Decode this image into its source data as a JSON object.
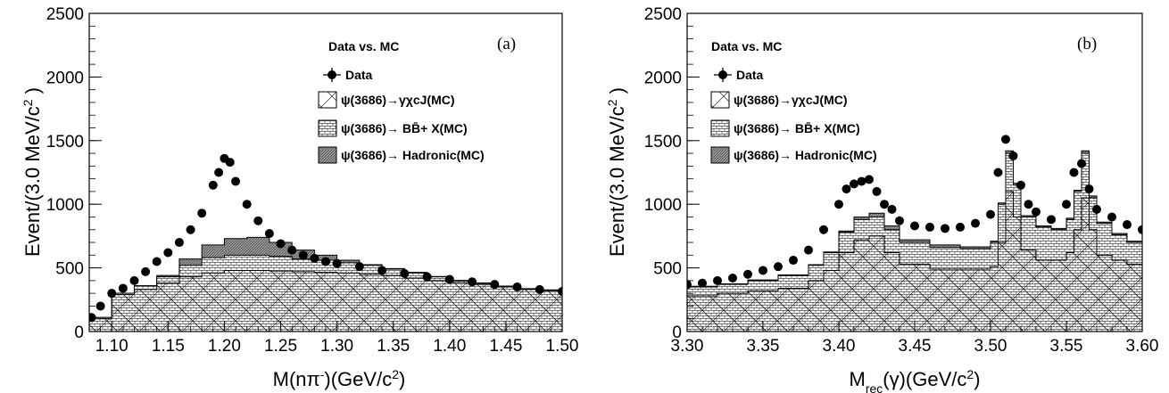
{
  "chart_data": [
    {
      "type": "histogram",
      "panel_label": "(a)",
      "xlabel": "M(nπ⁻)(GeV/c²)",
      "ylabel": "Event/(3.0 MeV/c²)",
      "xlim": [
        1.08,
        1.5
      ],
      "ylim": [
        0,
        2500
      ],
      "xticks": [
        "1.10",
        "1.15",
        "1.20",
        "1.25",
        "1.30",
        "1.35",
        "1.40",
        "1.45",
        "1.50"
      ],
      "yticks": [
        "0",
        "500",
        "1000",
        "1500",
        "2000",
        "2500"
      ],
      "legend": {
        "title": "Data vs. MC",
        "data": "Data",
        "chicj": "ψ(3686)→γχcJ(MC)",
        "bbbar": "ψ(3686)→ BB̄+ X(MC)",
        "hadronic": "ψ(3686)→ Hadronic(MC)"
      },
      "data_points": {
        "x": [
          1.082,
          1.09,
          1.1,
          1.11,
          1.12,
          1.13,
          1.14,
          1.15,
          1.16,
          1.17,
          1.18,
          1.19,
          1.195,
          1.2,
          1.205,
          1.21,
          1.22,
          1.23,
          1.24,
          1.25,
          1.26,
          1.27,
          1.28,
          1.29,
          1.3,
          1.32,
          1.34,
          1.36,
          1.38,
          1.4,
          1.42,
          1.44,
          1.46,
          1.48,
          1.5
        ],
        "y": [
          110,
          200,
          300,
          340,
          400,
          470,
          550,
          620,
          700,
          800,
          930,
          1150,
          1250,
          1360,
          1330,
          1180,
          1000,
          870,
          770,
          690,
          640,
          600,
          575,
          550,
          535,
          510,
          480,
          455,
          430,
          410,
          390,
          370,
          350,
          330,
          315
        ]
      },
      "mc_stack": {
        "x": [
          1.08,
          1.1,
          1.12,
          1.14,
          1.16,
          1.18,
          1.2,
          1.22,
          1.24,
          1.26,
          1.28,
          1.3,
          1.32,
          1.34,
          1.36,
          1.38,
          1.4,
          1.42,
          1.44,
          1.46,
          1.48,
          1.5
        ],
        "chicj": [
          100,
          290,
          330,
          380,
          430,
          460,
          480,
          480,
          475,
          470,
          465,
          460,
          450,
          440,
          420,
          400,
          385,
          370,
          350,
          330,
          320,
          310
        ],
        "bbbar_top": [
          110,
          300,
          360,
          430,
          520,
          580,
          600,
          600,
          590,
          570,
          560,
          540,
          520,
          490,
          460,
          430,
          400,
          380,
          355,
          335,
          325,
          315
        ],
        "hadronic_top": [
          110,
          300,
          360,
          440,
          570,
          680,
          730,
          740,
          700,
          640,
          600,
          560,
          525,
          495,
          465,
          432,
          402,
          382,
          357,
          337,
          327,
          317
        ]
      }
    },
    {
      "type": "histogram",
      "panel_label": "(b)",
      "xlabel": "Mrec(γ)(GeV/c²)",
      "ylabel": "Event/(3.0 MeV/c²)",
      "xlim": [
        3.3,
        3.6
      ],
      "ylim": [
        0,
        2500
      ],
      "xticks": [
        "3.30",
        "3.35",
        "3.40",
        "3.45",
        "3.50",
        "3.55",
        "3.60"
      ],
      "yticks": [
        "0",
        "500",
        "1000",
        "1500",
        "2000",
        "2500"
      ],
      "legend": {
        "title": "Data vs. MC",
        "data": "Data",
        "chicj": "ψ(3686)→γχcJ(MC)",
        "bbbar": "ψ(3686)→ BB̄+ X(MC)",
        "hadronic": "ψ(3686)→ Hadronic(MC)"
      },
      "data_points": {
        "x": [
          3.3,
          3.31,
          3.32,
          3.33,
          3.34,
          3.35,
          3.36,
          3.37,
          3.38,
          3.39,
          3.4,
          3.405,
          3.41,
          3.415,
          3.42,
          3.425,
          3.43,
          3.435,
          3.44,
          3.45,
          3.46,
          3.47,
          3.48,
          3.49,
          3.5,
          3.505,
          3.51,
          3.515,
          3.52,
          3.525,
          3.53,
          3.54,
          3.55,
          3.555,
          3.56,
          3.565,
          3.57,
          3.58,
          3.59,
          3.6
        ],
        "y": [
          370,
          380,
          400,
          420,
          450,
          480,
          510,
          560,
          640,
          800,
          1000,
          1120,
          1160,
          1180,
          1195,
          1100,
          1000,
          960,
          870,
          830,
          820,
          810,
          820,
          850,
          920,
          1250,
          1510,
          1380,
          1150,
          1000,
          940,
          880,
          1000,
          1250,
          1320,
          1120,
          960,
          900,
          840,
          800
        ]
      },
      "mc_stack": {
        "x": [
          3.3,
          3.32,
          3.34,
          3.36,
          3.38,
          3.39,
          3.4,
          3.41,
          3.42,
          3.43,
          3.44,
          3.46,
          3.48,
          3.5,
          3.505,
          3.51,
          3.515,
          3.52,
          3.53,
          3.54,
          3.55,
          3.555,
          3.56,
          3.565,
          3.57,
          3.58,
          3.59,
          3.6
        ],
        "chicj": [
          280,
          300,
          320,
          340,
          400,
          480,
          620,
          720,
          750,
          620,
          530,
          490,
          490,
          510,
          700,
          1100,
          900,
          640,
          560,
          560,
          620,
          800,
          1050,
          800,
          600,
          560,
          530,
          500
        ],
        "bbbar_top": [
          350,
          370,
          400,
          440,
          520,
          620,
          780,
          880,
          900,
          800,
          700,
          660,
          650,
          700,
          1000,
          1400,
          1150,
          900,
          820,
          800,
          880,
          1100,
          1400,
          1050,
          850,
          760,
          700,
          650
        ],
        "hadronic_top": [
          355,
          375,
          405,
          445,
          525,
          625,
          790,
          900,
          930,
          830,
          720,
          680,
          665,
          710,
          1010,
          1420,
          1165,
          910,
          830,
          810,
          890,
          1110,
          1420,
          1065,
          860,
          770,
          710,
          660
        ]
      }
    }
  ]
}
